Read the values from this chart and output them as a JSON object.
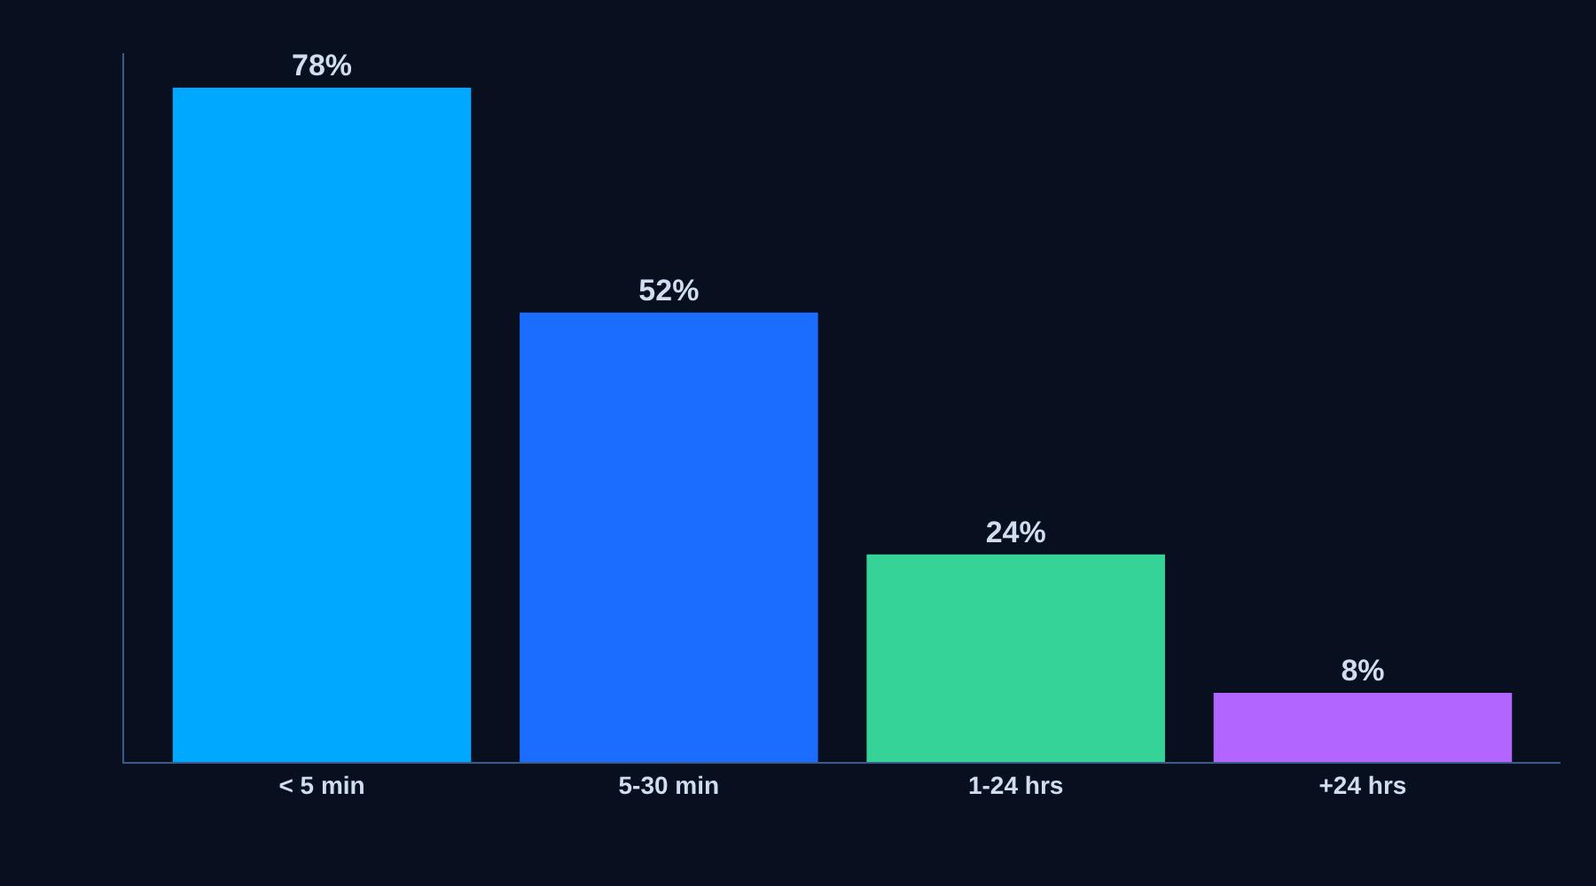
{
  "chart_data": {
    "type": "bar",
    "categories": [
      "< 5 min",
      "5-30 min",
      "1-24 hrs",
      "+24 hrs"
    ],
    "values": [
      78,
      52,
      24,
      8
    ],
    "colors": [
      "#00a8ff",
      "#1a6dff",
      "#36d399",
      "#b366ff"
    ],
    "value_labels": [
      "78%",
      "52%",
      "24%",
      "8%"
    ],
    "ylim": [
      0,
      82
    ],
    "tick_labels": "x"
  }
}
